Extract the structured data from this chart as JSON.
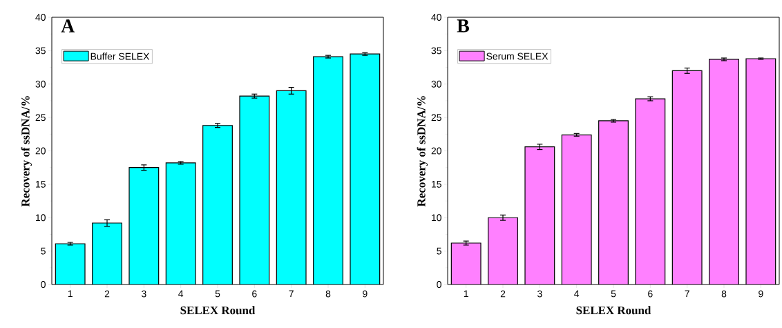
{
  "chart_data": [
    {
      "type": "bar",
      "title": "A",
      "xlabel": "SELEX Round",
      "ylabel": "Recovery of ssDNA/%",
      "categories": [
        "1",
        "2",
        "3",
        "4",
        "5",
        "6",
        "7",
        "8",
        "9"
      ],
      "series": [
        {
          "name": "Buffer SELEX",
          "color": "#00ffff",
          "values": [
            6.1,
            9.2,
            17.5,
            18.2,
            23.8,
            28.2,
            29.0,
            34.1,
            34.5
          ],
          "errors": [
            0.2,
            0.5,
            0.4,
            0.2,
            0.3,
            0.3,
            0.5,
            0.2,
            0.2
          ]
        }
      ],
      "ylim": [
        0,
        40
      ],
      "yticks": [
        0,
        5,
        10,
        15,
        20,
        25,
        30,
        35,
        40
      ],
      "legend": "top left",
      "grid": false
    },
    {
      "type": "bar",
      "title": "B",
      "xlabel": "SELEX Round",
      "ylabel": "Recovery of ssDNA/%",
      "categories": [
        "1",
        "2",
        "3",
        "4",
        "5",
        "6",
        "7",
        "8",
        "9"
      ],
      "series": [
        {
          "name": "Serum SELEX",
          "color": "#ff80ff",
          "values": [
            6.2,
            10.0,
            20.6,
            22.4,
            24.5,
            27.8,
            32.0,
            33.7,
            33.8
          ],
          "errors": [
            0.3,
            0.4,
            0.4,
            0.2,
            0.2,
            0.3,
            0.4,
            0.2,
            0.1
          ]
        }
      ],
      "ylim": [
        0,
        40
      ],
      "yticks": [
        0,
        5,
        10,
        15,
        20,
        25,
        30,
        35,
        40
      ],
      "legend": "top left",
      "grid": false
    }
  ]
}
